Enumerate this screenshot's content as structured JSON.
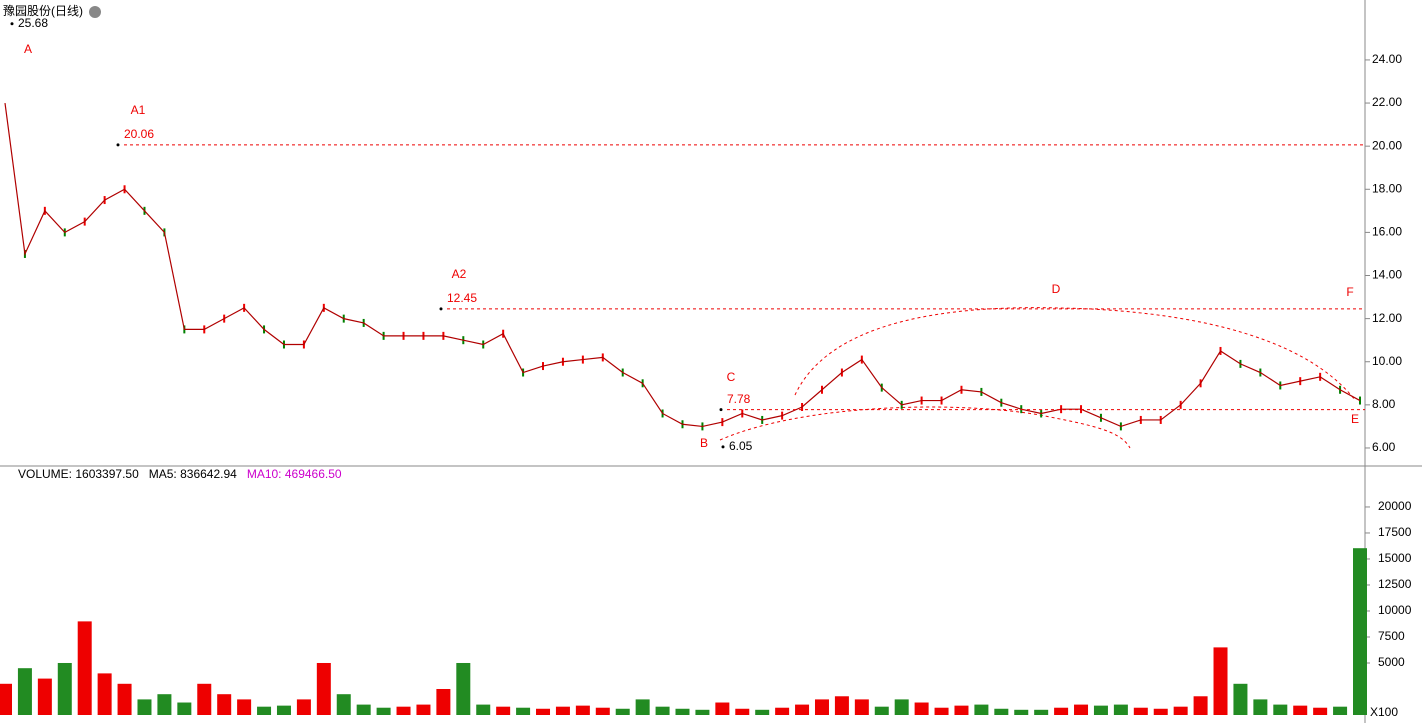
{
  "chart_data": [
    {
      "type": "line",
      "title": "豫园股份(日线)",
      "series": [
        {
          "name": null,
          "color": "#b00000",
          "values": [
            22,
            15,
            17,
            16,
            16.5,
            17.5,
            18,
            17,
            16,
            11.5,
            11.5,
            12,
            12.5,
            11.5,
            10.8,
            10.8,
            12.5,
            12,
            11.8,
            11.2,
            11.2,
            11.2,
            11.2,
            11,
            10.8,
            11.3,
            9.5,
            9.8,
            10,
            10.1,
            10.2,
            9.5,
            9,
            7.6,
            7.1,
            7,
            7.2,
            7.6,
            7.3,
            7.5,
            7.9,
            8.7,
            9.5,
            10.1,
            8.8,
            8,
            8.2,
            8.2,
            8.7,
            8.6,
            8.1,
            7.8,
            7.6,
            7.8,
            7.8,
            7.4,
            7,
            7.3,
            7.3,
            8,
            9,
            10.5,
            9.9,
            9.5,
            8.9,
            9.1,
            9.3,
            8.7,
            8.2
          ]
        }
      ],
      "price_marks": [
        25.68,
        20.06,
        12.45,
        6.05,
        7.78
      ],
      "annotations": [
        "A",
        "A1",
        "A2",
        "B",
        "C",
        "D",
        "E",
        "F"
      ],
      "ylim": [
        5.21,
        26.78
      ],
      "yticks": [
        {
          "value": 6,
          "label": "6.00"
        },
        {
          "value": 8,
          "label": "8.00"
        },
        {
          "value": 10,
          "label": "10.00"
        },
        {
          "value": 12,
          "label": "12.00"
        },
        {
          "value": 14,
          "label": "14.00"
        },
        {
          "value": 16,
          "label": "16.00"
        },
        {
          "value": 18,
          "label": "18.00"
        },
        {
          "value": 20,
          "label": "20.00"
        },
        {
          "value": 22,
          "label": "22.00"
        },
        {
          "value": 24,
          "label": "24.00"
        }
      ]
    },
    {
      "type": "bar",
      "legend": [
        {
          "text": "VOLUME: 1603397.50",
          "color": "#000000"
        },
        {
          "text": "MA5: 836642.94",
          "color": "#000000"
        },
        {
          "text": "MA10: 469466.50",
          "color": "#cc00cc"
        }
      ],
      "unit": "X100",
      "values": [
        3000,
        4500,
        3500,
        5000,
        9000,
        4000,
        3000,
        1500,
        2000,
        1200,
        3000,
        2000,
        1500,
        800,
        900,
        1500,
        5000,
        2000,
        1000,
        700,
        800,
        1000,
        2500,
        5000,
        1000,
        800,
        700,
        600,
        800,
        900,
        700,
        600,
        1500,
        800,
        600,
        500,
        1200,
        600,
        500,
        700,
        1000,
        1500,
        1800,
        1500,
        800,
        1500,
        1200,
        700,
        900,
        1000,
        600,
        500,
        500,
        700,
        1000,
        900,
        1000,
        700,
        600,
        800,
        1800,
        6500,
        3000,
        1500,
        1000,
        900,
        700,
        800,
        16036
      ],
      "ylim": [
        0,
        22400
      ],
      "yticks": [
        5000,
        7500,
        10000,
        12500,
        15000,
        17500,
        20000
      ]
    }
  ]
}
